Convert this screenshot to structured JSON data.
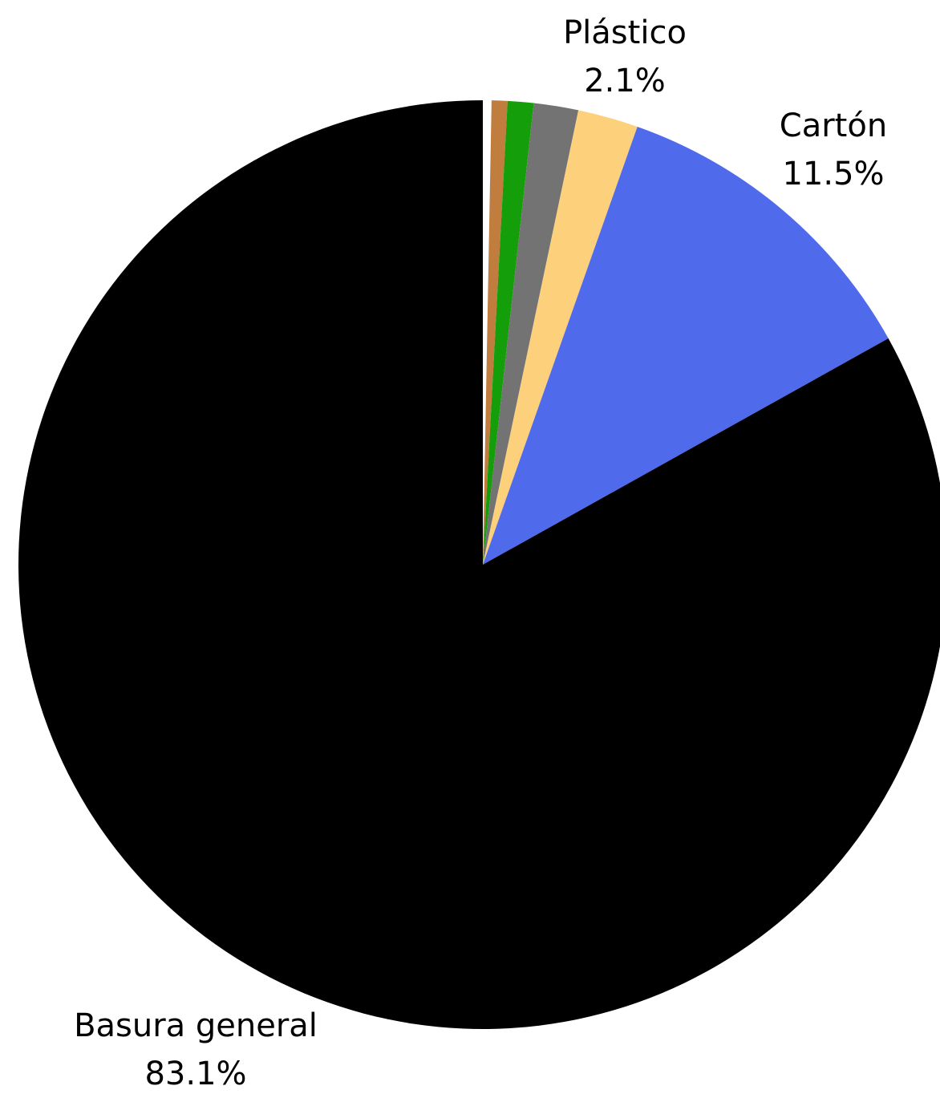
{
  "chart_data": {
    "type": "pie",
    "start_angle": "top",
    "direction": "clockwise",
    "slices": [
      {
        "label": "",
        "value": 0.3,
        "value_label": "",
        "color": "#ffffff"
      },
      {
        "label": "",
        "value": 0.55,
        "value_label": "",
        "color": "#c07d3e"
      },
      {
        "label": "",
        "value": 0.9,
        "value_label": "",
        "color": "#149e0a"
      },
      {
        "label": "",
        "value": 1.55,
        "value_label": "",
        "color": "#737373"
      },
      {
        "label": "Plástico",
        "value": 2.1,
        "value_label": "2.1%",
        "color": "#fdd07c"
      },
      {
        "label": "Cartón",
        "value": 11.5,
        "value_label": "11.5%",
        "color": "#4f6bec"
      },
      {
        "label": "Basura general",
        "value": 83.1,
        "value_label": "83.1%",
        "color": "#000000"
      }
    ]
  }
}
